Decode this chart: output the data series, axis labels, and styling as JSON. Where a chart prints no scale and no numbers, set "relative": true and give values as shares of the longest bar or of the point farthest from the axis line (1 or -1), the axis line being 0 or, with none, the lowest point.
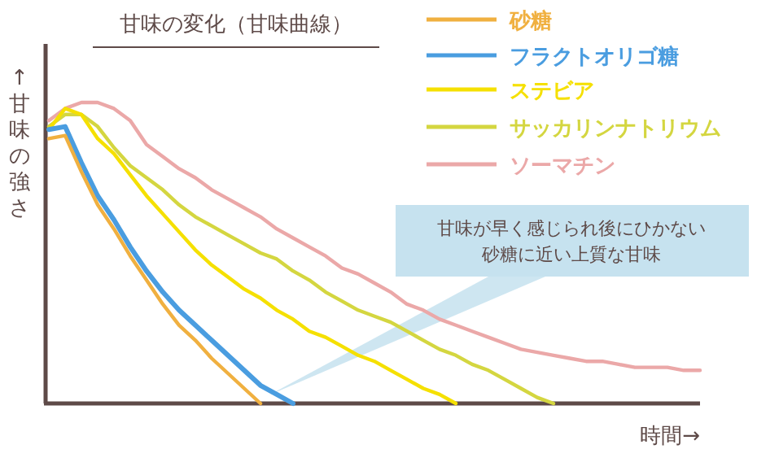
{
  "chart_data": {
    "type": "line",
    "relative": true,
    "title": "甘味の変化（甘味曲線）",
    "xlabel": "時間→",
    "ylabel": "↑甘味の強さ",
    "legend": "top right",
    "annotations": [
      "甘味が早く感じられ後にひかない",
      "砂糖に近い上質な甘味"
    ],
    "categories": [
      null,
      null,
      null,
      null,
      null,
      null,
      null,
      null,
      null,
      null,
      null,
      null,
      null,
      null,
      null,
      null,
      null,
      null,
      null,
      null,
      null,
      null,
      null,
      null,
      null,
      null,
      null,
      null,
      null,
      null,
      null,
      null,
      null,
      null,
      null,
      null,
      null,
      null,
      null,
      null,
      null
    ],
    "series": [
      {
        "name": "砂糖",
        "color": "#f0b040",
        "values": [
          0.88,
          0.89,
          0.77,
          0.66,
          0.58,
          0.49,
          0.41,
          0.33,
          0.26,
          0.21,
          0.15,
          0.1,
          0.05,
          0,
          null,
          null,
          null,
          null,
          null,
          null,
          null,
          null,
          null,
          null,
          null,
          null,
          null,
          null,
          null,
          null,
          null,
          null,
          null,
          null,
          null,
          null,
          null,
          null,
          null,
          null,
          null
        ]
      },
      {
        "name": "フラクトオリゴ糖",
        "color": "#4a9de0",
        "values": [
          0.91,
          0.92,
          0.8,
          0.69,
          0.61,
          0.52,
          0.44,
          0.37,
          0.31,
          0.26,
          0.21,
          0.16,
          0.11,
          0.06,
          0.03,
          0,
          null,
          null,
          null,
          null,
          null,
          null,
          null,
          null,
          null,
          null,
          null,
          null,
          null,
          null,
          null,
          null,
          null,
          null,
          null,
          null,
          null,
          null,
          null,
          null,
          null
        ]
      },
      {
        "name": "ステビア",
        "color": "#f5e000",
        "values": [
          0.91,
          0.98,
          0.96,
          0.88,
          0.83,
          0.76,
          0.69,
          0.63,
          0.57,
          0.51,
          0.46,
          0.42,
          0.38,
          0.35,
          0.31,
          0.28,
          0.24,
          0.22,
          0.19,
          0.16,
          0.14,
          0.11,
          0.08,
          0.05,
          0.03,
          0,
          null,
          null,
          null,
          null,
          null,
          null,
          null,
          null,
          null,
          null,
          null,
          null,
          null,
          null,
          null
        ]
      },
      {
        "name": "サッカリンナトリウム",
        "color": "#d4d640",
        "values": [
          0.92,
          0.96,
          0.96,
          0.92,
          0.85,
          0.79,
          0.75,
          0.71,
          0.66,
          0.62,
          0.59,
          0.56,
          0.53,
          0.5,
          0.48,
          0.44,
          0.41,
          0.37,
          0.34,
          0.31,
          0.29,
          0.27,
          0.24,
          0.21,
          0.18,
          0.16,
          0.13,
          0.11,
          0.08,
          0.05,
          0.02,
          0,
          null,
          null,
          null,
          null,
          null,
          null,
          null,
          null,
          null
        ]
      },
      {
        "name": "ソーマチン",
        "color": "#eba8a8",
        "values": [
          0.94,
          0.98,
          1.0,
          1.0,
          0.98,
          0.94,
          0.86,
          0.82,
          0.78,
          0.75,
          0.71,
          0.68,
          0.65,
          0.62,
          0.58,
          0.55,
          0.52,
          0.49,
          0.45,
          0.43,
          0.4,
          0.37,
          0.33,
          0.31,
          0.28,
          0.26,
          0.24,
          0.22,
          0.2,
          0.18,
          0.17,
          0.16,
          0.15,
          0.14,
          0.14,
          0.13,
          0.12,
          0.12,
          0.12,
          0.11,
          0.11
        ]
      }
    ]
  }
}
